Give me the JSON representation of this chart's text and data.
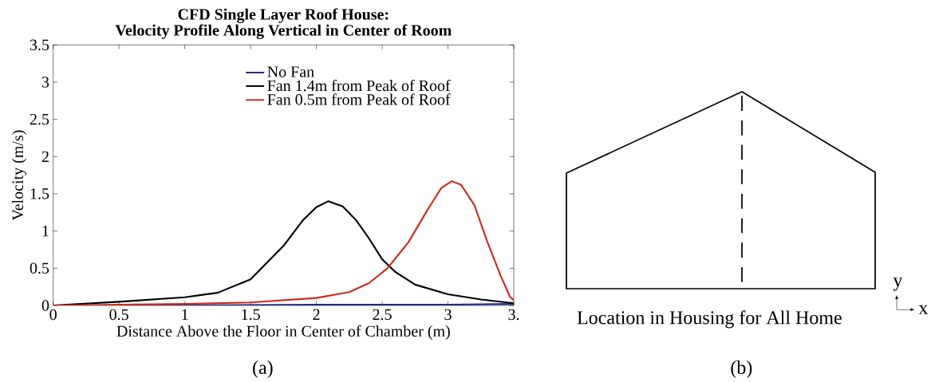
{
  "chart_data": [
    {
      "type": "line",
      "title": "CFD Single Layer Roof House:",
      "subtitle": "Velocity Profile Along Vertical in Center of Room",
      "xlabel": "Distance Above the Floor in Center of Chamber (m)",
      "ylabel": "Velocity (m/s)",
      "annotations": [
        "(a)"
      ],
      "xlim": [
        0,
        3.5
      ],
      "ylim": [
        0,
        3.5
      ],
      "xticks": [
        0,
        0.5,
        1,
        1.5,
        2,
        2.5,
        3,
        {
          "value": 3.5,
          "label": "3."
        }
      ],
      "yticks": [
        0,
        0.5,
        1,
        1.5,
        2,
        2.5,
        3,
        3.5
      ],
      "grid": false,
      "legend": "top right",
      "line_style": "solid",
      "marker": "none",
      "series": [
        {
          "name": "No Fan",
          "color": "#1f2a8a",
          "x": [
            0,
            1,
            2,
            3,
            3.5
          ],
          "values": [
            0,
            0,
            0.01,
            0.01,
            0.02
          ]
        },
        {
          "name": "Fan 1.4m from Peak of Roof",
          "color": "#000000",
          "x": [
            0,
            0.5,
            1,
            1.25,
            1.5,
            1.75,
            1.9,
            2,
            2.09,
            2.2,
            2.3,
            2.4,
            2.5,
            2.6,
            2.75,
            3,
            3.25,
            3.5
          ],
          "values": [
            0,
            0.05,
            0.11,
            0.17,
            0.35,
            0.8,
            1.15,
            1.32,
            1.4,
            1.33,
            1.15,
            0.9,
            0.62,
            0.45,
            0.28,
            0.15,
            0.08,
            0.03
          ]
        },
        {
          "name": "Fan 0.5m from Peak of Roof",
          "color": "#d02a1f",
          "x": [
            0,
            1,
            1.5,
            2,
            2.25,
            2.4,
            2.54,
            2.7,
            2.85,
            2.95,
            3.03,
            3.1,
            3.2,
            3.3,
            3.4,
            3.47,
            3.5
          ],
          "values": [
            0,
            0.02,
            0.04,
            0.1,
            0.18,
            0.3,
            0.5,
            0.85,
            1.3,
            1.58,
            1.67,
            1.62,
            1.35,
            0.85,
            0.4,
            0.12,
            0.07
          ]
        }
      ]
    },
    {
      "type": "other",
      "annotations": [
        "Location in Housing for All Home",
        "y",
        "x",
        "(b)"
      ]
    }
  ]
}
